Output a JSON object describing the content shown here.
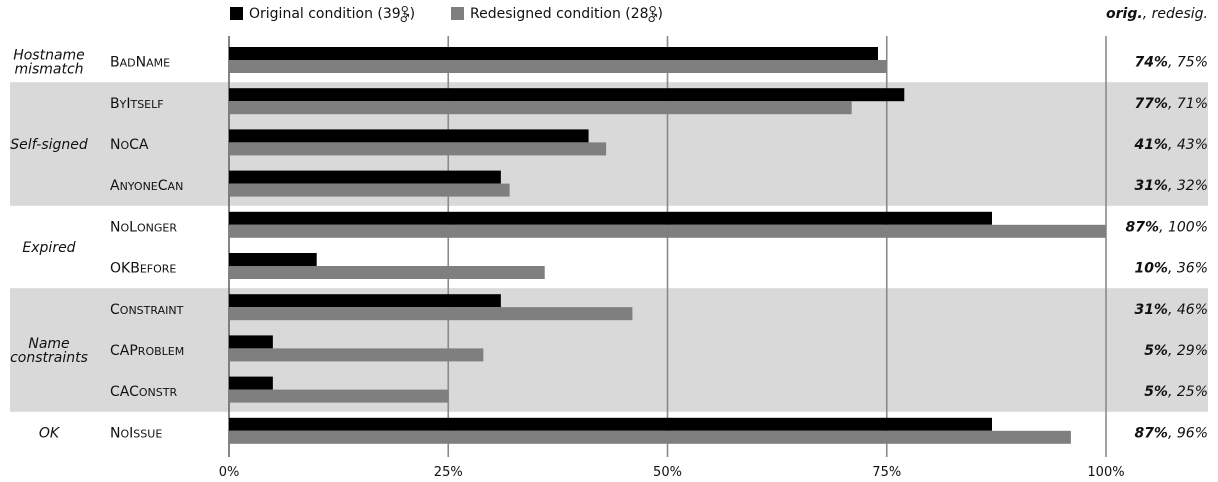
{
  "chart_data": {
    "type": "bar",
    "orientation": "horizontal",
    "xlim": [
      0,
      100
    ],
    "x_ticks": [
      "0%",
      "25%",
      "50%",
      "75%",
      "100%"
    ],
    "legend": {
      "placement": "top",
      "entries": [
        {
          "label": "Original condition (39",
          "suffix": ")",
          "color": "#000000"
        },
        {
          "label": "Redesigned condition (28",
          "suffix": ")",
          "color": "#7f7f7f"
        }
      ]
    },
    "right_header": {
      "orig": "orig.",
      "sep": ", ",
      "redesig": "redesig."
    },
    "groups": [
      {
        "lines": [
          "Hostname",
          "mismatch"
        ],
        "shaded": false,
        "rows": [
          0
        ]
      },
      {
        "lines": [
          "Self-signed"
        ],
        "shaded": true,
        "rows": [
          1,
          2,
          3
        ]
      },
      {
        "lines": [
          "Expired"
        ],
        "shaded": false,
        "rows": [
          4,
          5
        ]
      },
      {
        "lines": [
          "Name",
          "constraints"
        ],
        "shaded": true,
        "rows": [
          6,
          7,
          8
        ]
      },
      {
        "lines": [
          "OK"
        ],
        "shaded": false,
        "rows": [
          9
        ]
      }
    ],
    "categories": [
      [
        {
          "t": "B",
          "big": true
        },
        {
          "t": "AD",
          "big": false
        },
        {
          "t": "N",
          "big": true
        },
        {
          "t": "AME",
          "big": false
        }
      ],
      [
        {
          "t": "B",
          "big": true
        },
        {
          "t": "Y",
          "big": false
        },
        {
          "t": "I",
          "big": true
        },
        {
          "t": "TSELF",
          "big": false
        }
      ],
      [
        {
          "t": "N",
          "big": true
        },
        {
          "t": "O",
          "big": false
        },
        {
          "t": "CA",
          "big": true
        }
      ],
      [
        {
          "t": "A",
          "big": true
        },
        {
          "t": "NYONE",
          "big": false
        },
        {
          "t": "C",
          "big": true
        },
        {
          "t": "AN",
          "big": false
        }
      ],
      [
        {
          "t": "N",
          "big": true
        },
        {
          "t": "O",
          "big": false
        },
        {
          "t": "L",
          "big": true
        },
        {
          "t": "ONGER",
          "big": false
        }
      ],
      [
        {
          "t": "OKB",
          "big": true
        },
        {
          "t": "EFORE",
          "big": false
        }
      ],
      [
        {
          "t": "C",
          "big": true
        },
        {
          "t": "ONSTRAINT",
          "big": false
        }
      ],
      [
        {
          "t": "CAP",
          "big": true
        },
        {
          "t": "ROBLEM",
          "big": false
        }
      ],
      [
        {
          "t": "CAC",
          "big": true
        },
        {
          "t": "ONSTR",
          "big": false
        }
      ],
      [
        {
          "t": "N",
          "big": true
        },
        {
          "t": "O",
          "big": false
        },
        {
          "t": "I",
          "big": true
        },
        {
          "t": "SSUE",
          "big": false
        }
      ]
    ],
    "series": [
      {
        "name": "Original condition",
        "color": "#000000",
        "values": [
          74,
          77,
          41,
          31,
          87,
          10,
          31,
          5,
          5,
          87
        ]
      },
      {
        "name": "Redesigned condition",
        "color": "#7f7f7f",
        "values": [
          75,
          71,
          43,
          32,
          100,
          36,
          46,
          29,
          25,
          96
        ]
      }
    ],
    "value_labels": {
      "orig": [
        "74%",
        "77%",
        "41%",
        "31%",
        "87%",
        "10%",
        "31%",
        "5%",
        "5%",
        "87%"
      ],
      "redesig": [
        "75%",
        "71%",
        "43%",
        "32%",
        "100%",
        "36%",
        "46%",
        "29%",
        "25%",
        "96%"
      ]
    },
    "colors": {
      "shade": "#d9d9d9",
      "grid": "#8a8a8a"
    }
  }
}
